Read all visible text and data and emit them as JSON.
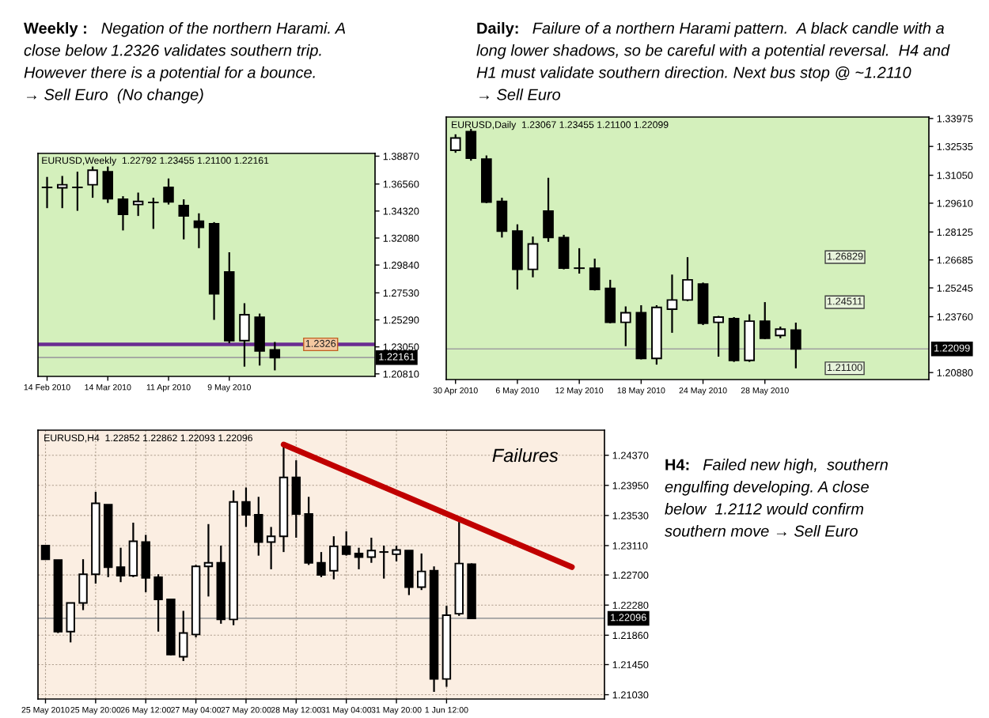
{
  "chart_data": [
    {
      "type": "candlestick",
      "title": "Weekly :",
      "subtitle": "Negation of the northern Harami. A\nclose below 1.2326 validates southern trip.\nHowever there is a potential for a bounce.\n→ Sell Euro  (No change)",
      "categories": [
        "14 Feb 2010",
        null,
        null,
        null,
        "14 Mar 2010",
        null,
        null,
        null,
        "11 Apr 2010",
        null,
        null,
        null,
        "9 May 2010",
        null,
        null,
        null,
        null,
        null,
        null,
        null,
        null,
        null
      ],
      "ohlc": [
        [
          1.3628,
          1.3715,
          1.3456,
          1.3628
        ],
        [
          1.3624,
          1.3723,
          1.3456,
          1.365
        ],
        [
          1.3628,
          1.3758,
          1.3434,
          1.3628
        ],
        [
          1.365,
          1.3801,
          1.3542,
          1.3771
        ],
        [
          1.3758,
          1.3801,
          1.3499,
          1.3534
        ],
        [
          1.3529,
          1.3555,
          1.3271,
          1.3404
        ],
        [
          1.3486,
          1.3585,
          1.3391,
          1.3512
        ],
        [
          1.3503,
          1.3542,
          1.3284,
          1.3503
        ],
        [
          1.3628,
          1.3702,
          1.3486,
          1.3508
        ],
        [
          1.3478,
          1.3529,
          1.3197,
          1.3391
        ],
        [
          1.3348,
          1.3413,
          1.3124,
          1.3297
        ],
        [
          1.3327,
          1.334,
          1.2529,
          1.2745
        ],
        [
          1.2926,
          1.309,
          1.2335,
          1.2357
        ],
        [
          1.2357,
          1.2667,
          1.2141,
          1.2572
        ],
        [
          1.2551,
          1.2581,
          1.215,
          1.2271
        ],
        [
          1.22792,
          1.23455,
          1.211,
          1.22161
        ],
        null,
        null,
        null,
        null,
        null,
        null
      ],
      "ylim": [
        1.206,
        1.391
      ],
      "yticks": [
        {
          "value": 1.3887,
          "label": "1.38870"
        },
        {
          "value": 1.3656,
          "label": "1.36560"
        },
        {
          "value": 1.3432,
          "label": "1.34320"
        },
        {
          "value": 1.3208,
          "label": "1.32080"
        },
        {
          "value": 1.2984,
          "label": "1.29840"
        },
        {
          "value": 1.2753,
          "label": "1.27530"
        },
        {
          "value": 1.2529,
          "label": "1.25290"
        },
        {
          "value": 1.2305,
          "label": "1.23050"
        },
        {
          "value": 1.2081,
          "label": "1.20810"
        }
      ],
      "ref_lines": [
        {
          "axis": "y",
          "value": 1.2326,
          "color": "#6a2c91",
          "line_style": "solid"
        },
        {
          "axis": "y",
          "value": 1.22161,
          "label": "1.22161",
          "color": "#a0a0a0",
          "line_style": "solid"
        }
      ],
      "annotations": [
        "EURUSD,Weekly  1.22792 1.23455 1.21100 1.22161",
        {
          "text": "1.2326",
          "y": 1.2326
        }
      ]
    },
    {
      "type": "candlestick",
      "title": "Daily:",
      "subtitle": "Failure of a northern Harami pattern.  A black candle with a\nlong lower shadows, so be careful with a potential reversal.  H4 and\nH1 must validate southern direction. Next bus stop @ ~1.2110\n→ Sell Euro",
      "categories": [
        "30 Apr 2010",
        null,
        null,
        null,
        "6 May 2010",
        null,
        null,
        null,
        "12 May 2010",
        null,
        null,
        null,
        "18 May 2010",
        null,
        null,
        null,
        "24 May 2010",
        null,
        null,
        null,
        "28 May 2010",
        null,
        null,
        null,
        null,
        null,
        null,
        null,
        null,
        null,
        null
      ],
      "ohlc": [
        [
          1.3234,
          1.3316,
          1.3221,
          1.3297
        ],
        [
          1.333,
          1.3344,
          1.318,
          1.3193
        ],
        [
          1.3188,
          1.3207,
          1.2961,
          1.2967
        ],
        [
          1.297,
          1.2989,
          1.2784,
          1.2817
        ],
        [
          1.2817,
          1.2852,
          1.2516,
          1.262
        ],
        [
          1.262,
          1.2789,
          1.2579,
          1.2751
        ],
        [
          1.292,
          1.3092,
          1.2762,
          1.2784
        ],
        [
          1.2784,
          1.2798,
          1.262,
          1.2626
        ],
        [
          1.2626,
          1.2729,
          1.2598,
          1.2626
        ],
        [
          1.2626,
          1.2675,
          1.2511,
          1.2516
        ],
        [
          1.2522,
          1.2566,
          1.2342,
          1.2347
        ],
        [
          1.2347,
          1.2429,
          1.2224,
          1.2396
        ],
        [
          1.2396,
          1.2435,
          1.2156,
          1.2161
        ],
        [
          1.2161,
          1.2435,
          1.2129,
          1.2424
        ],
        [
          1.2415,
          1.2593,
          1.2293,
          1.2462
        ],
        [
          1.2462,
          1.26829,
          1.2456,
          1.2566
        ],
        [
          1.2544,
          1.2552,
          1.2333,
          1.2342
        ],
        [
          1.2347,
          1.238,
          1.217,
          1.2374
        ],
        [
          1.2366,
          1.2374,
          1.2143,
          1.2151
        ],
        [
          1.2151,
          1.2388,
          1.2143,
          1.2353
        ],
        [
          1.2353,
          1.24511,
          1.226,
          1.2265
        ],
        [
          1.2279,
          1.2325,
          1.2265,
          1.2312
        ],
        [
          1.23067,
          1.23455,
          1.211,
          1.22099
        ],
        null,
        null,
        null,
        null,
        null,
        null,
        null,
        null
      ],
      "ylim": [
        1.2052,
        1.3405
      ],
      "yticks": [
        {
          "value": 1.33975,
          "label": "1.33975"
        },
        {
          "value": 1.32535,
          "label": "1.32535"
        },
        {
          "value": 1.3105,
          "label": "1.31050"
        },
        {
          "value": 1.2961,
          "label": "1.29610"
        },
        {
          "value": 1.28125,
          "label": "1.28125"
        },
        {
          "value": 1.26685,
          "label": "1.26685"
        },
        {
          "value": 1.25245,
          "label": "1.25245"
        },
        {
          "value": 1.2376,
          "label": "1.23760"
        },
        {
          "value": 1.2088,
          "label": "1.20880"
        }
      ],
      "ref_lines": [
        {
          "axis": "y",
          "value": 1.22099,
          "label": "1.22099",
          "color": "#a0a0a0",
          "line_style": "solid"
        }
      ],
      "annotations": [
        "EURUSD,Daily  1.23067 1.23455 1.21100 1.22099",
        {
          "text": "1.26829",
          "y": 1.26829
        },
        {
          "text": "1.24511",
          "y": 1.24511
        },
        {
          "text": "1.21100",
          "y": 1.211
        }
      ]
    },
    {
      "type": "candlestick",
      "categories": [
        "25 May 2010",
        null,
        null,
        null,
        "25 May 20:00",
        null,
        null,
        null,
        "26 May 12:00",
        null,
        null,
        null,
        "27 May 04:00",
        null,
        null,
        null,
        "27 May 20:00",
        null,
        null,
        null,
        "28 May 12:00",
        null,
        null,
        null,
        "31 May 04:00",
        null,
        null,
        null,
        "31 May 20:00",
        null,
        null,
        null,
        "1 Jun 12:00",
        null,
        null,
        null,
        null,
        null,
        null,
        null,
        null,
        null,
        null,
        null,
        null
      ],
      "ohlc": [
        [
          1.2311,
          1.2311,
          1.2292,
          1.2292
        ],
        [
          1.2291,
          1.2291,
          1.2189,
          1.2191
        ],
        [
          1.2191,
          1.2231,
          1.2176,
          1.2231
        ],
        [
          1.2231,
          1.2292,
          1.2221,
          1.2271
        ],
        [
          1.2271,
          1.2386,
          1.2258,
          1.237
        ],
        [
          1.2368,
          1.2368,
          1.2267,
          1.2281
        ],
        [
          1.2281,
          1.2308,
          1.226,
          1.2269
        ],
        [
          1.2269,
          1.2343,
          1.2267,
          1.2317
        ],
        [
          1.2316,
          1.2326,
          1.2246,
          1.2266
        ],
        [
          1.2267,
          1.2271,
          1.2191,
          1.2236
        ],
        [
          1.2236,
          1.2236,
          1.2158,
          1.2159
        ],
        [
          1.2156,
          1.222,
          1.215,
          1.2189
        ],
        [
          1.2187,
          1.2284,
          1.2183,
          1.2282
        ],
        [
          1.2282,
          1.2341,
          1.224,
          1.2287
        ],
        [
          1.2287,
          1.2311,
          1.2202,
          1.2208
        ],
        [
          1.2208,
          1.2388,
          1.22,
          1.2372
        ],
        [
          1.2372,
          1.2392,
          1.2337,
          1.2354
        ],
        [
          1.2354,
          1.2379,
          1.2297,
          1.2316
        ],
        [
          1.2316,
          1.2337,
          1.2278,
          1.2324
        ],
        [
          1.2324,
          1.245,
          1.2302,
          1.2406
        ],
        [
          1.2406,
          1.243,
          1.2322,
          1.2355
        ],
        [
          1.2355,
          1.2379,
          1.2284,
          1.2287
        ],
        [
          1.2287,
          1.2302,
          1.2267,
          1.227
        ],
        [
          1.2276,
          1.2324,
          1.2264,
          1.231
        ],
        [
          1.231,
          1.2331,
          1.2297,
          1.2299
        ],
        [
          1.23,
          1.2308,
          1.2278,
          1.2295
        ],
        [
          1.2295,
          1.2322,
          1.2287,
          1.2304
        ],
        [
          1.2302,
          1.2311,
          1.2265,
          1.2302
        ],
        [
          1.2299,
          1.2311,
          1.2289,
          1.2305
        ],
        [
          1.2304,
          1.2304,
          1.2242,
          1.2253
        ],
        [
          1.2253,
          1.23,
          1.2249,
          1.2275
        ],
        [
          1.2276,
          1.2282,
          1.2107,
          1.2125
        ],
        [
          1.2125,
          1.2227,
          1.2114,
          1.2214
        ],
        [
          1.2216,
          1.2344,
          1.2213,
          1.2286
        ],
        [
          1.22852,
          1.22862,
          1.22093,
          1.22096
        ],
        null,
        null,
        null,
        null,
        null,
        null,
        null,
        null,
        null,
        null
      ],
      "series": [
        {
          "type": "line",
          "values": [
            null,
            null,
            null,
            null,
            null,
            null,
            null,
            null,
            null,
            null,
            null,
            null,
            null,
            null,
            null,
            null,
            null,
            null,
            null,
            1.2452,
            null,
            null,
            null,
            null,
            null,
            null,
            null,
            null,
            null,
            null,
            null,
            null,
            null,
            null,
            null,
            null,
            null,
            null,
            null,
            null,
            null,
            null,
            1.2281,
            null,
            null
          ],
          "color": "#c00000"
        }
      ],
      "ylim": [
        1.2097,
        1.2472
      ],
      "yticks": [
        {
          "value": 1.2437,
          "label": "1.24370"
        },
        {
          "value": 1.2395,
          "label": "1.23950"
        },
        {
          "value": 1.2353,
          "label": "1.23530"
        },
        {
          "value": 1.2311,
          "label": "1.23110"
        },
        {
          "value": 1.227,
          "label": "1.22700"
        },
        {
          "value": 1.2228,
          "label": "1.22280"
        },
        {
          "value": 1.2186,
          "label": "1.21860"
        },
        {
          "value": 1.2145,
          "label": "1.21450"
        },
        {
          "value": 1.2103,
          "label": "1.21030"
        }
      ],
      "grid": true,
      "ref_lines": [
        {
          "axis": "y",
          "value": 1.22096,
          "label": "1.22096",
          "color": "#a0a0a0",
          "line_style": "solid"
        }
      ],
      "annotations": [
        "EURUSD,H4  1.22852 1.22862 1.22093 1.22096",
        "Failures",
        "H4:",
        "Failed new high,  southern\nengulfing developing. A close\nbelow  1.2112 would confirm\nsouthern move → Sell Euro"
      ]
    }
  ]
}
